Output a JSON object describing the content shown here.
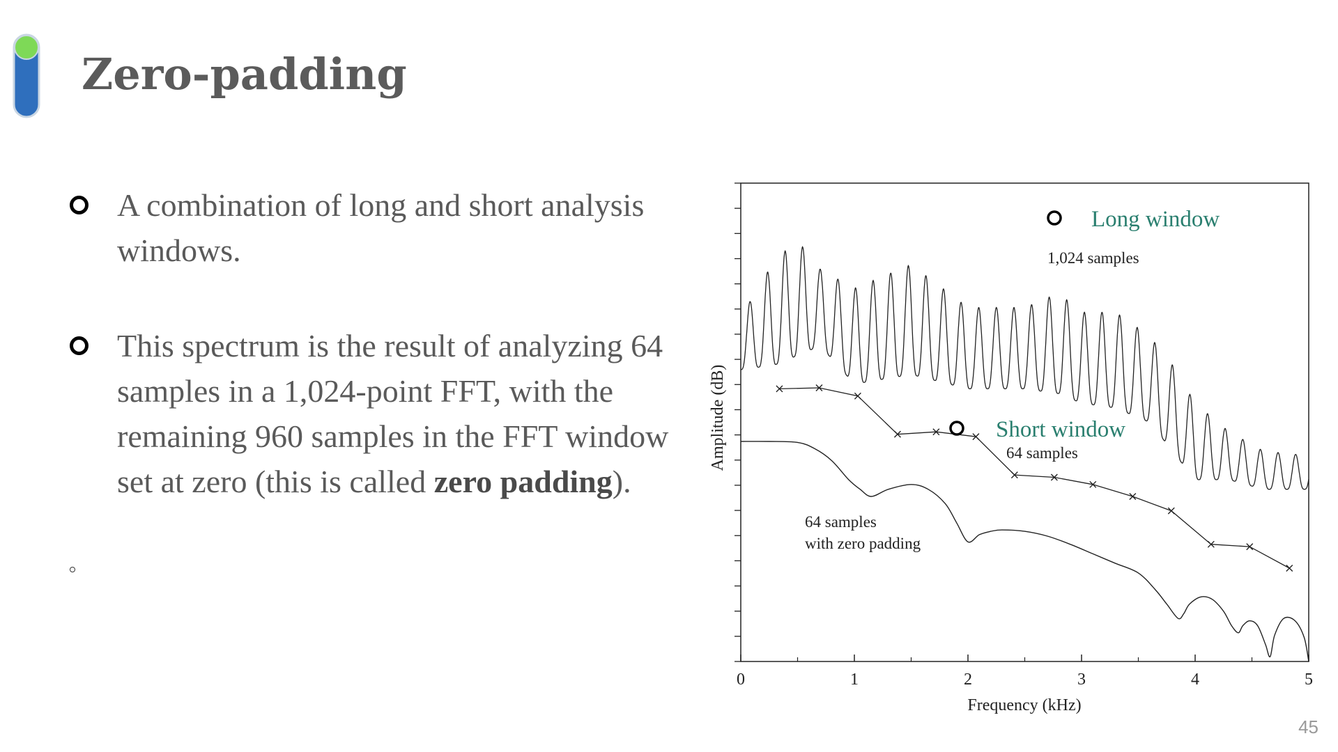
{
  "slide": {
    "title": "Zero-padding",
    "page_number": "45",
    "logo_icon": "pill-shaped-logo-icon",
    "colors": {
      "logo_top": "#7ed957",
      "logo_body": "#2f6fbd",
      "legend_text": "#2a7f6f",
      "body_text": "#5a5a5a"
    }
  },
  "bullets": [
    {
      "text": "A combination of long and short analysis windows."
    },
    {
      "text_before": "This spectrum is the result of analyzing 64 samples in a 1,024-point FFT, with the remaining 960 samples in the FFT window set at zero (this is called ",
      "bold": "zero padding",
      "text_after": ")."
    }
  ],
  "stray_marker": "°",
  "figure": {
    "long_legend": "Long window",
    "long_caption": "1,024 samples",
    "short_legend": "Short window",
    "short_caption": "64 samples",
    "zp_caption_line1": "64 samples",
    "zp_caption_line2": "with zero padding"
  },
  "chart_data": {
    "type": "line",
    "xlabel": "Frequency (kHz)",
    "ylabel": "Amplitude (dB)",
    "xlim": [
      0,
      5
    ],
    "x_ticks": [
      "0",
      "1",
      "2",
      "3",
      "4",
      "5"
    ],
    "y_tick_labels_shown": false,
    "grid": false,
    "series": [
      {
        "name": "1,024 samples",
        "style": "dense oscillating line",
        "peak_spacing_khz": 0.155,
        "envelope": {
          "x": [
            0,
            0.3,
            0.5,
            0.7,
            1.0,
            1.5,
            2.0,
            2.5,
            2.8,
            3.0,
            3.3,
            3.6,
            3.8,
            4.0,
            4.3,
            4.6,
            5.0
          ],
          "upper": [
            0.72,
            0.84,
            0.88,
            0.82,
            0.78,
            0.83,
            0.74,
            0.74,
            0.77,
            0.73,
            0.73,
            0.68,
            0.62,
            0.54,
            0.48,
            0.44,
            0.43
          ],
          "lower": [
            0.61,
            0.62,
            0.64,
            0.66,
            0.58,
            0.6,
            0.57,
            0.57,
            0.56,
            0.54,
            0.53,
            0.5,
            0.44,
            0.38,
            0.38,
            0.36,
            0.36
          ]
        }
      },
      {
        "name": "64 samples",
        "style": "line with x markers",
        "x": [
          0.34,
          0.69,
          1.03,
          1.38,
          1.72,
          2.07,
          2.41,
          2.76,
          3.1,
          3.45,
          3.79,
          4.14,
          4.48,
          4.83
        ],
        "y": [
          0.57,
          0.572,
          0.555,
          0.475,
          0.48,
          0.47,
          0.39,
          0.385,
          0.37,
          0.345,
          0.315,
          0.245,
          0.24,
          0.195
        ]
      },
      {
        "name": "64 samples with zero padding",
        "style": "smooth line",
        "x": [
          0,
          0.25,
          0.5,
          0.65,
          0.8,
          0.95,
          1.05,
          1.15,
          1.3,
          1.5,
          1.65,
          1.8,
          1.9,
          2.0,
          2.1,
          2.2,
          2.3,
          2.5,
          2.7,
          2.9,
          3.1,
          3.3,
          3.5,
          3.65,
          3.75,
          3.85,
          3.9,
          3.95,
          4.05,
          4.15,
          4.25,
          4.32,
          4.38,
          4.42,
          4.48,
          4.55,
          4.62,
          4.66,
          4.7,
          4.78,
          4.88,
          4.96,
          5.0
        ],
        "y": [
          0.46,
          0.46,
          0.458,
          0.445,
          0.42,
          0.38,
          0.36,
          0.345,
          0.36,
          0.37,
          0.36,
          0.33,
          0.29,
          0.25,
          0.265,
          0.272,
          0.275,
          0.272,
          0.262,
          0.245,
          0.225,
          0.205,
          0.185,
          0.15,
          0.12,
          0.09,
          0.1,
          0.12,
          0.135,
          0.13,
          0.105,
          0.075,
          0.06,
          0.075,
          0.085,
          0.075,
          0.035,
          0.01,
          0.055,
          0.09,
          0.085,
          0.05,
          0.0
        ]
      }
    ]
  }
}
